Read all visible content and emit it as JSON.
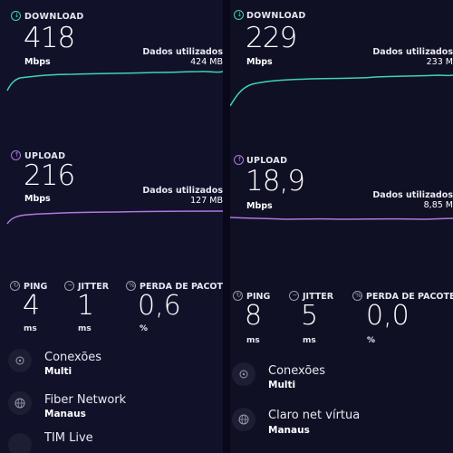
{
  "left": {
    "download": {
      "label": "DOWNLOAD",
      "value": "418",
      "unit": "Mbps",
      "data_label": "Dados utilizados",
      "data_value": "424 MB"
    },
    "upload": {
      "label": "UPLOAD",
      "value": "216",
      "unit": "Mbps",
      "data_label": "Dados utilizados",
      "data_value": "127 MB"
    },
    "ping": {
      "label": "PING",
      "value": "4",
      "unit": "ms"
    },
    "jitter": {
      "label": "JITTER",
      "value": "1",
      "unit": "ms"
    },
    "loss": {
      "label": "PERDA DE PACOTES",
      "value": "0,6",
      "unit": "%"
    },
    "connections": {
      "title": "Conexões",
      "sub": "Multi"
    },
    "server": {
      "title": "Fiber Network",
      "sub": "Manaus"
    },
    "provider": {
      "title": "TIM Live"
    }
  },
  "right": {
    "download": {
      "label": "DOWNLOAD",
      "value": "229",
      "unit": "Mbps",
      "data_label": "Dados utilizados",
      "data_value": "233 M"
    },
    "upload": {
      "label": "UPLOAD",
      "value": "18,9",
      "unit": "Mbps",
      "data_label": "Dados utilizados",
      "data_value": "8,85 M"
    },
    "ping": {
      "label": "PING",
      "value": "8",
      "unit": "ms"
    },
    "jitter": {
      "label": "JITTER",
      "value": "5",
      "unit": "ms"
    },
    "loss": {
      "label": "PERDA DE PACOTES",
      "value": "0,0",
      "unit": "%"
    },
    "connections": {
      "title": "Conexões",
      "sub": "Multi"
    },
    "server": {
      "title": "Claro net vírtua",
      "sub": "Manaus"
    }
  },
  "colors": {
    "download": "#3fd3b5",
    "upload": "#b077e0",
    "background": "#11122a"
  },
  "icons": {
    "download": "download-arrow-icon",
    "upload": "upload-arrow-icon",
    "ping": "ping-icon",
    "jitter": "jitter-icon",
    "loss": "packet-loss-icon",
    "connections": "connections-icon",
    "server": "globe-icon"
  }
}
